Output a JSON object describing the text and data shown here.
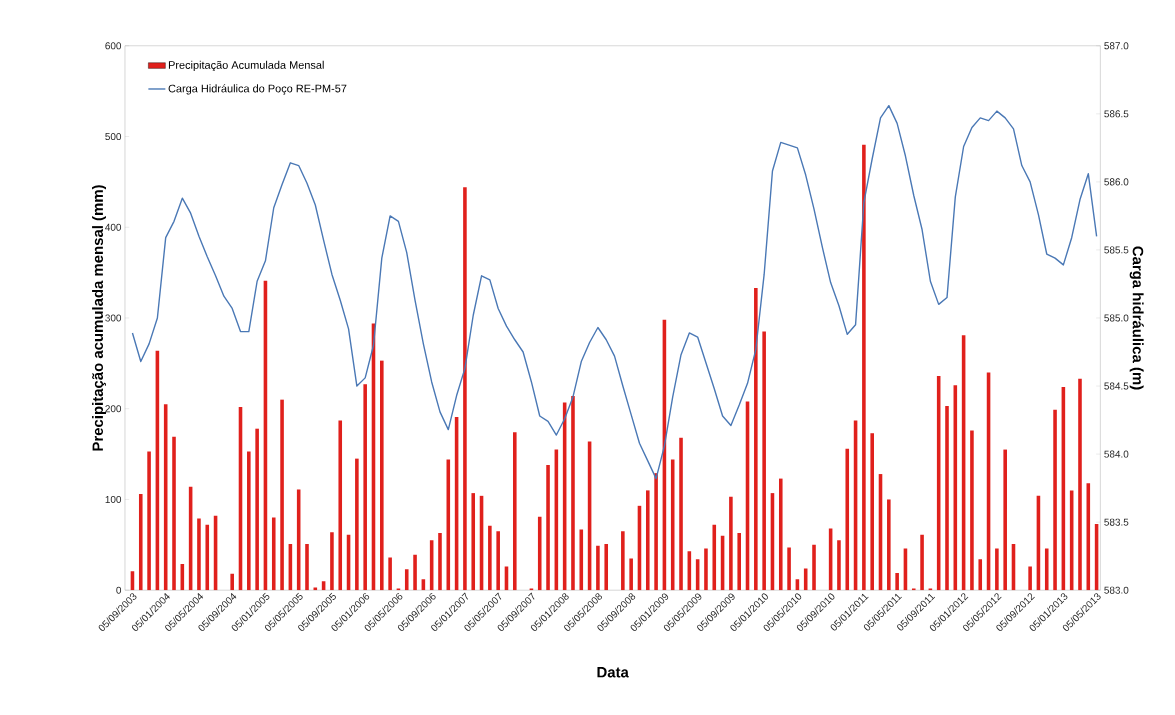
{
  "chart_data": {
    "type": "bar",
    "xlabel": "Data",
    "ylabel": "Precipitação acumulada mensal (mm)",
    "y2label": "Carga hidráulica (m)",
    "categories": [
      "05/09/2003",
      null,
      null,
      null,
      "05/01/2004",
      null,
      null,
      null,
      "05/05/2004",
      null,
      null,
      null,
      "05/09/2004",
      null,
      null,
      null,
      "05/01/2005",
      null,
      null,
      null,
      "05/05/2005",
      null,
      null,
      null,
      "05/09/2005",
      null,
      null,
      null,
      "05/01/2006",
      null,
      null,
      null,
      "05/05/2006",
      null,
      null,
      null,
      "05/09/2006",
      null,
      null,
      null,
      "05/01/2007",
      null,
      null,
      null,
      "05/05/2007",
      null,
      null,
      null,
      "05/09/2007",
      null,
      null,
      null,
      "05/01/2008",
      null,
      null,
      null,
      "05/05/2008",
      null,
      null,
      null,
      "05/09/2008",
      null,
      null,
      null,
      "05/01/2009",
      null,
      null,
      null,
      "05/05/2009",
      null,
      null,
      null,
      "05/09/2009",
      null,
      null,
      null,
      "05/01/2010",
      null,
      null,
      null,
      "05/05/2010",
      null,
      null,
      null,
      "05/09/2010",
      null,
      null,
      null,
      "05/01/2011",
      null,
      null,
      null,
      "05/05/2011",
      null,
      null,
      null,
      "05/09/2011",
      null,
      null,
      null,
      "05/01/2012",
      null,
      null,
      null,
      "05/05/2012",
      null,
      null,
      null,
      "05/09/2012",
      null,
      null,
      null,
      "05/01/2013",
      null,
      null,
      null,
      "05/05/2013"
    ],
    "series": [
      {
        "name": "Precipitação Acumulada Mensal",
        "color": "#e0201c",
        "values": [
          21,
          106,
          153,
          264,
          205,
          169,
          29,
          114,
          79,
          72,
          82,
          0,
          18,
          202,
          153,
          178,
          341,
          80,
          210,
          51,
          111,
          51,
          3,
          10,
          64,
          187,
          61,
          145,
          227,
          294,
          253,
          36,
          2,
          23,
          39,
          12,
          55,
          63,
          144,
          191,
          444,
          107,
          104,
          71,
          65,
          26,
          174,
          0,
          2,
          81,
          138,
          155,
          207,
          214,
          67,
          164,
          49,
          51,
          0,
          65,
          35,
          93,
          110,
          129,
          298,
          144,
          168,
          43,
          34,
          46,
          72,
          60,
          103,
          63,
          208,
          333,
          285,
          107,
          123,
          47,
          12,
          24,
          50,
          0,
          68,
          55,
          156,
          187,
          491,
          173,
          128,
          100,
          19,
          46,
          2,
          61,
          2,
          236,
          203,
          226,
          281,
          176,
          34,
          240,
          46,
          155,
          51,
          0,
          26,
          104,
          46,
          199,
          224,
          110,
          233,
          118,
          73
        ]
      },
      {
        "name": "Carga Hidráulica do Poço RE-PM-57",
        "type": "line",
        "axis": "y2",
        "color": "#4a78b5",
        "values": [
          584.89,
          584.68,
          584.81,
          585.0,
          585.59,
          585.71,
          585.88,
          585.77,
          585.6,
          585.45,
          585.31,
          585.16,
          585.07,
          584.9,
          584.9,
          585.27,
          585.42,
          585.81,
          585.98,
          586.14,
          586.12,
          585.99,
          585.83,
          585.57,
          585.32,
          585.13,
          584.92,
          584.5,
          584.56,
          584.8,
          585.44,
          585.75,
          585.71,
          585.48,
          585.13,
          584.81,
          584.53,
          584.31,
          584.18,
          584.43,
          584.63,
          585.02,
          585.31,
          585.28,
          585.07,
          584.94,
          584.84,
          584.75,
          584.53,
          584.28,
          584.24,
          584.14,
          584.26,
          584.42,
          584.68,
          584.82,
          584.93,
          584.84,
          584.72,
          584.5,
          584.29,
          584.08,
          583.95,
          583.82,
          584.06,
          584.42,
          584.73,
          584.89,
          584.86,
          584.67,
          584.48,
          584.28,
          584.21,
          584.36,
          584.52,
          584.77,
          585.32,
          586.08,
          586.29,
          586.27,
          586.25,
          586.05,
          585.8,
          585.52,
          585.26,
          585.09,
          584.88,
          584.95,
          585.85,
          586.17,
          586.47,
          586.56,
          586.43,
          586.19,
          585.9,
          585.65,
          585.27,
          585.1,
          585.15,
          585.89,
          586.26,
          586.4,
          586.47,
          586.45,
          586.52,
          586.47,
          586.39,
          586.12,
          586.0,
          585.76,
          585.47,
          585.44,
          585.39,
          585.59,
          585.87,
          586.06,
          585.6
        ]
      }
    ],
    "ylim": [
      0,
      600
    ],
    "yticks": [
      0,
      100,
      200,
      300,
      400,
      500,
      600
    ],
    "y2lim": [
      583,
      587
    ],
    "y2ticks": [
      {
        "value": 583,
        "label": "583.0"
      },
      {
        "value": 583.5,
        "label": "583.5"
      },
      {
        "value": 584,
        "label": "584.0"
      },
      {
        "value": 584.5,
        "label": "584.5"
      },
      {
        "value": 585,
        "label": "585.0"
      },
      {
        "value": 585.5,
        "label": "585.5"
      },
      {
        "value": 586,
        "label": "586.0"
      },
      {
        "value": 586.5,
        "label": "586.5"
      },
      {
        "value": 587,
        "label": "587.0"
      }
    ],
    "legend": "top left"
  }
}
